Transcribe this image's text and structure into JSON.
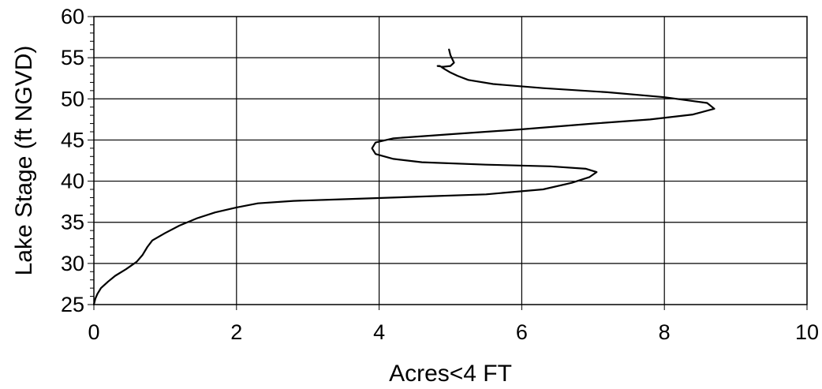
{
  "chart_data": {
    "type": "line",
    "title": "",
    "xlabel": "Acres<4 FT",
    "ylabel": "Lake Stage (ft NGVD)",
    "xlim": [
      0,
      10
    ],
    "ylim": [
      25,
      60
    ],
    "x_ticks": [
      0,
      2,
      4,
      6,
      8,
      10
    ],
    "x_tick_labels": [
      "0",
      "2",
      "4",
      "6",
      "8",
      "10"
    ],
    "y_ticks": [
      25,
      30,
      35,
      40,
      45,
      50,
      55,
      60
    ],
    "y_tick_labels": [
      "25",
      "30",
      "35",
      "40",
      "45",
      "50",
      "55",
      "60"
    ],
    "y_minor_step": 1,
    "grid": true,
    "legend": "none",
    "series": [
      {
        "color": "#000000",
        "points": [
          [
            0.0,
            25.0
          ],
          [
            0.02,
            25.7
          ],
          [
            0.05,
            26.3
          ],
          [
            0.1,
            27.0
          ],
          [
            0.2,
            27.8
          ],
          [
            0.3,
            28.5
          ],
          [
            0.45,
            29.3
          ],
          [
            0.6,
            30.2
          ],
          [
            0.68,
            31.0
          ],
          [
            0.75,
            32.0
          ],
          [
            0.82,
            32.8
          ],
          [
            1.0,
            33.7
          ],
          [
            1.2,
            34.6
          ],
          [
            1.45,
            35.5
          ],
          [
            1.7,
            36.2
          ],
          [
            2.0,
            36.8
          ],
          [
            2.3,
            37.3
          ],
          [
            2.8,
            37.6
          ],
          [
            3.5,
            37.8
          ],
          [
            4.5,
            38.1
          ],
          [
            5.5,
            38.4
          ],
          [
            6.3,
            39.0
          ],
          [
            6.7,
            39.8
          ],
          [
            6.95,
            40.5
          ],
          [
            7.05,
            41.1
          ],
          [
            6.9,
            41.5
          ],
          [
            6.4,
            41.8
          ],
          [
            5.5,
            42.0
          ],
          [
            4.6,
            42.3
          ],
          [
            4.2,
            42.7
          ],
          [
            3.95,
            43.3
          ],
          [
            3.9,
            44.0
          ],
          [
            3.95,
            44.7
          ],
          [
            4.2,
            45.2
          ],
          [
            5.0,
            45.7
          ],
          [
            6.0,
            46.3
          ],
          [
            7.0,
            47.0
          ],
          [
            7.8,
            47.5
          ],
          [
            8.4,
            48.1
          ],
          [
            8.7,
            48.8
          ],
          [
            8.6,
            49.5
          ],
          [
            8.0,
            50.2
          ],
          [
            7.2,
            50.8
          ],
          [
            6.3,
            51.3
          ],
          [
            5.6,
            51.8
          ],
          [
            5.25,
            52.3
          ],
          [
            5.1,
            52.8
          ],
          [
            5.0,
            53.2
          ],
          [
            4.92,
            53.6
          ],
          [
            4.85,
            54.0
          ],
          [
            4.82,
            54.0
          ],
          [
            4.9,
            53.9
          ],
          [
            5.0,
            54.0
          ],
          [
            5.05,
            54.4
          ],
          [
            5.0,
            55.3
          ],
          [
            4.98,
            56.0
          ]
        ]
      }
    ]
  }
}
